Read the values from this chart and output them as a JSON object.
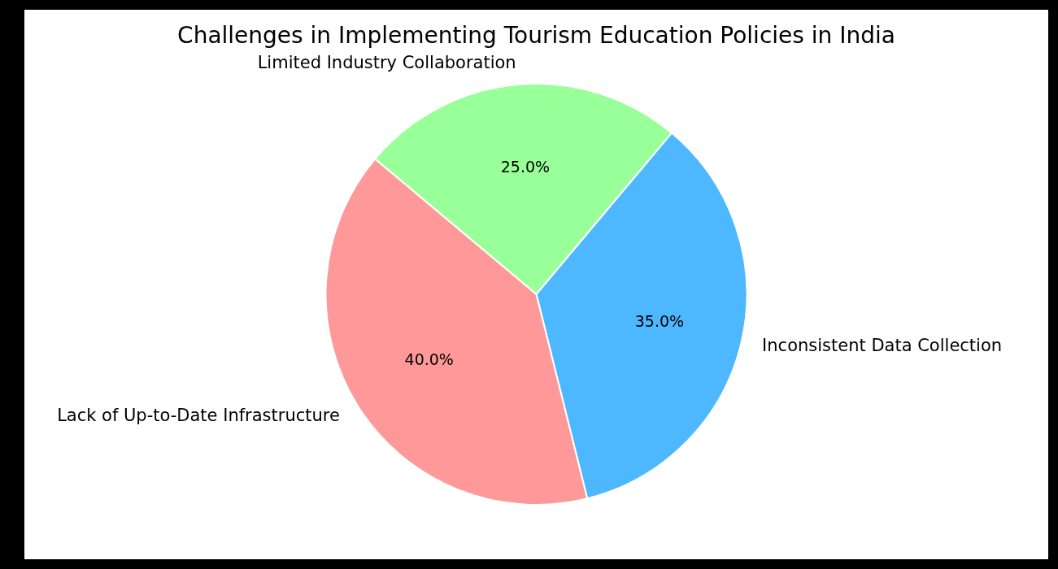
{
  "chart_data": {
    "type": "pie",
    "title": "Challenges in Implementing Tourism Education Policies in India",
    "categories": [
      "Limited Industry Collaboration",
      "Inconsistent Data Collection",
      "Lack of Up-to-Date Infrastructure"
    ],
    "values": [
      25,
      35,
      40
    ],
    "colors": [
      "#99ff99",
      "#4db8ff",
      "#ff9999"
    ],
    "value_labels": [
      "25.0%",
      "35.0%",
      "40.0%"
    ],
    "legend": false
  }
}
